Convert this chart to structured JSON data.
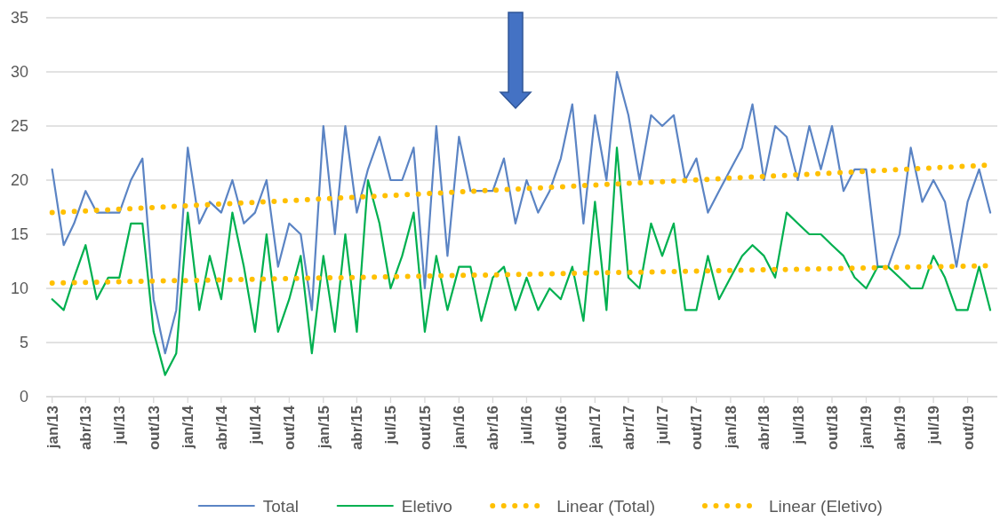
{
  "chart_data": {
    "type": "line",
    "x": [
      "2013-01",
      "2013-02",
      "2013-03",
      "2013-04",
      "2013-05",
      "2013-06",
      "2013-07",
      "2013-08",
      "2013-09",
      "2013-10",
      "2013-11",
      "2013-12",
      "2014-01",
      "2014-02",
      "2014-03",
      "2014-04",
      "2014-05",
      "2014-06",
      "2014-07",
      "2014-08",
      "2014-09",
      "2014-10",
      "2014-11",
      "2014-12",
      "2015-01",
      "2015-02",
      "2015-03",
      "2015-04",
      "2015-05",
      "2015-06",
      "2015-07",
      "2015-08",
      "2015-09",
      "2015-10",
      "2015-11",
      "2015-12",
      "2016-01",
      "2016-02",
      "2016-03",
      "2016-04",
      "2016-05",
      "2016-06",
      "2016-07",
      "2016-08",
      "2016-09",
      "2016-10",
      "2016-11",
      "2016-12",
      "2017-01",
      "2017-02",
      "2017-03",
      "2017-04",
      "2017-05",
      "2017-06",
      "2017-07",
      "2017-08",
      "2017-09",
      "2017-10",
      "2017-11",
      "2017-12",
      "2018-01",
      "2018-02",
      "2018-03",
      "2018-04",
      "2018-05",
      "2018-06",
      "2018-07",
      "2018-08",
      "2018-09",
      "2018-10",
      "2018-11",
      "2018-12",
      "2019-01",
      "2019-02",
      "2019-03",
      "2019-04",
      "2019-05",
      "2019-06",
      "2019-07",
      "2019-08",
      "2019-09",
      "2019-10",
      "2019-11",
      "2019-12"
    ],
    "series": [
      {
        "name": "Total",
        "color": "#5b84c4",
        "values": [
          21,
          14,
          16,
          19,
          17,
          17,
          17,
          20,
          22,
          9,
          4,
          8,
          23,
          16,
          18,
          17,
          20,
          16,
          17,
          20,
          12,
          16,
          15,
          8,
          25,
          15,
          25,
          17,
          21,
          24,
          20,
          20,
          23,
          10,
          25,
          13,
          24,
          19,
          19,
          19,
          22,
          16,
          20,
          17,
          19,
          22,
          27,
          16,
          26,
          20,
          30,
          26,
          20,
          26,
          25,
          26,
          20,
          22,
          17,
          19,
          21,
          23,
          27,
          20,
          25,
          24,
          20,
          25,
          21,
          25,
          19,
          21,
          21,
          12,
          12,
          15,
          23,
          18,
          20,
          18,
          12,
          18,
          21,
          17
        ]
      },
      {
        "name": "Eletivo",
        "color": "#00b050",
        "values": [
          9,
          8,
          11,
          14,
          9,
          11,
          11,
          16,
          16,
          6,
          2,
          4,
          17,
          8,
          13,
          9,
          17,
          12,
          6,
          15,
          6,
          9,
          13,
          4,
          13,
          6,
          15,
          6,
          20,
          16,
          10,
          13,
          17,
          6,
          13,
          8,
          12,
          12,
          7,
          11,
          12,
          8,
          11,
          8,
          10,
          9,
          12,
          7,
          18,
          8,
          23,
          11,
          10,
          16,
          13,
          16,
          8,
          8,
          13,
          9,
          11,
          13,
          14,
          13,
          11,
          17,
          16,
          15,
          15,
          14,
          13,
          11,
          10,
          12,
          12,
          11,
          10,
          10,
          13,
          11,
          8,
          8,
          12,
          8
        ]
      },
      {
        "name": "Linear (Total)",
        "color": "#ffc000",
        "line_style": "dotted",
        "x": [
          "2013-01",
          "2019-12"
        ],
        "values": [
          17.0,
          21.4
        ]
      },
      {
        "name": "Linear (Eletivo)",
        "color": "#ffc000",
        "line_style": "dotted",
        "x": [
          "2013-01",
          "2019-12"
        ],
        "values": [
          10.5,
          12.1
        ]
      }
    ],
    "xlim": [
      "2012-12-16",
      "2019-12-20"
    ],
    "xticks": [
      {
        "value": "2013-01",
        "label": "jan/13"
      },
      {
        "value": "2013-04",
        "label": "abr/13"
      },
      {
        "value": "2013-07",
        "label": "jul/13"
      },
      {
        "value": "2013-10",
        "label": "out/13"
      },
      {
        "value": "2014-01",
        "label": "jan/14"
      },
      {
        "value": "2014-04",
        "label": "abr/14"
      },
      {
        "value": "2014-07",
        "label": "jul/14"
      },
      {
        "value": "2014-10",
        "label": "out/14"
      },
      {
        "value": "2015-01",
        "label": "jan/15"
      },
      {
        "value": "2015-04",
        "label": "abr/15"
      },
      {
        "value": "2015-07",
        "label": "jul/15"
      },
      {
        "value": "2015-10",
        "label": "out/15"
      },
      {
        "value": "2016-01",
        "label": "jan/16"
      },
      {
        "value": "2016-04",
        "label": "abr/16"
      },
      {
        "value": "2016-07",
        "label": "jul/16"
      },
      {
        "value": "2016-10",
        "label": "out/16"
      },
      {
        "value": "2017-01",
        "label": "jan/17"
      },
      {
        "value": "2017-04",
        "label": "abr/17"
      },
      {
        "value": "2017-07",
        "label": "jul/17"
      },
      {
        "value": "2017-10",
        "label": "out/17"
      },
      {
        "value": "2018-01",
        "label": "jan/18"
      },
      {
        "value": "2018-04",
        "label": "abr/18"
      },
      {
        "value": "2018-07",
        "label": "jul/18"
      },
      {
        "value": "2018-10",
        "label": "out/18"
      },
      {
        "value": "2019-01",
        "label": "jan/19"
      },
      {
        "value": "2019-04",
        "label": "abr/19"
      },
      {
        "value": "2019-07",
        "label": "jul/19"
      },
      {
        "value": "2019-10",
        "label": "out/19"
      }
    ],
    "ylim": [
      0,
      35
    ],
    "yticks": [
      0,
      5,
      10,
      15,
      20,
      25,
      30,
      35
    ],
    "grid": "y",
    "legend": "bottom",
    "marker": "none",
    "line_style": "solid"
  }
}
